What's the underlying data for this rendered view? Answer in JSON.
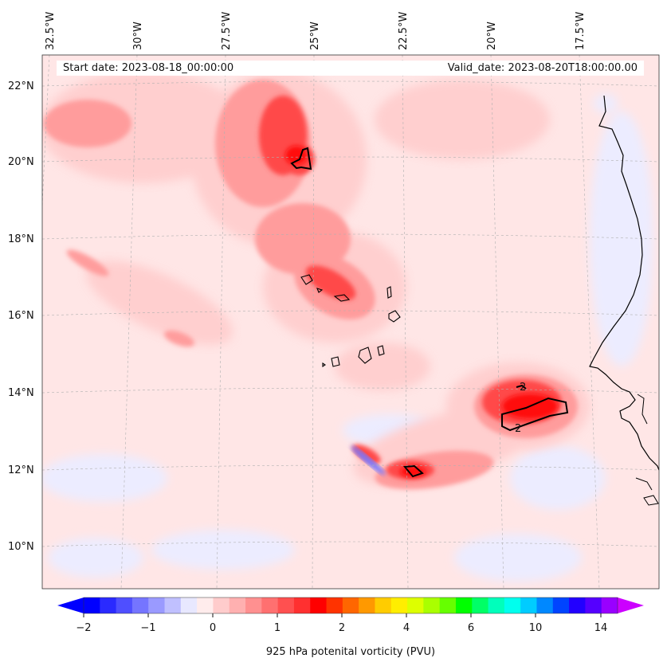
{
  "header": {
    "start_label": "Start date: 2023-08-18_00:00:00",
    "valid_label": "Valid_date: 2023-08-20T18:00:00.00"
  },
  "map": {
    "longitude_labels": [
      "32.5°W",
      "30°W",
      "27.5°W",
      "25°W",
      "22.5°W",
      "20°W",
      "17.5°W"
    ],
    "latitude_labels": [
      "22°N",
      "20°N",
      "18°N",
      "16°N",
      "14°N",
      "12°N",
      "10°N"
    ],
    "contour_labels": [
      "2",
      "2"
    ],
    "features": [
      "pv-shading",
      "black-contour-2-pvu",
      "coastline-africa",
      "cape-verde-islands",
      "gridlines"
    ]
  },
  "colorbar": {
    "label": "925 hPa potenital vorticity (PVU)",
    "tick_labels": [
      "−2",
      "−1",
      "0",
      "1",
      "2",
      "4",
      "6",
      "10",
      "14"
    ],
    "colors": [
      "#0000ff",
      "#2a2aff",
      "#4f4fff",
      "#7575ff",
      "#9a9aff",
      "#c0c0ff",
      "#e8e8ff",
      "#ffecec",
      "#ffcccc",
      "#ffb0b0",
      "#ff9090",
      "#ff7070",
      "#ff5050",
      "#ff3030",
      "#ff0000",
      "#ff3300",
      "#ff6600",
      "#ff9900",
      "#ffcc00",
      "#ffee00",
      "#ddff00",
      "#aaff00",
      "#66ff00",
      "#00ff00",
      "#00ff66",
      "#00ffbb",
      "#00ffee",
      "#00ccff",
      "#0088ff",
      "#0044ff",
      "#2200ff",
      "#5500ff",
      "#9900ff"
    ],
    "under_color": "#0000ff",
    "over_color": "#cc00ff"
  }
}
